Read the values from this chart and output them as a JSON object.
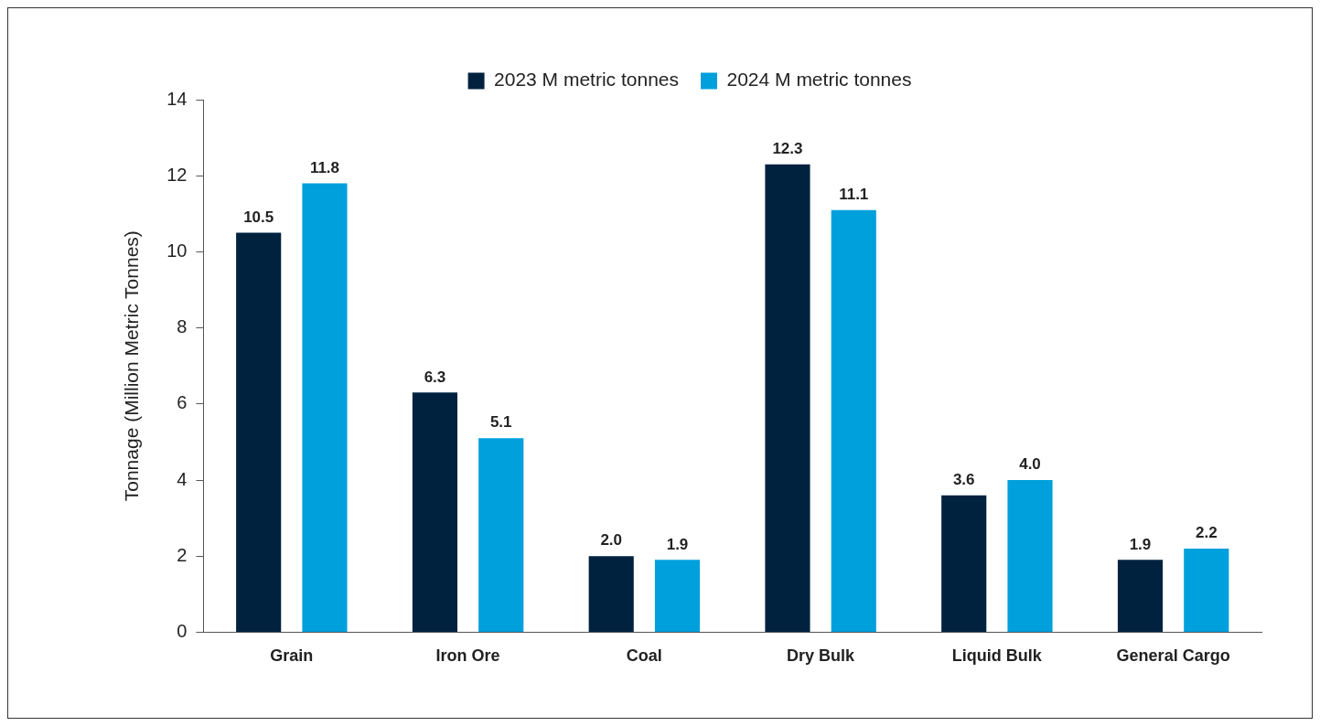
{
  "chart_data": {
    "type": "bar",
    "ylabel": "Tonnage (Million Metric Tonnes)",
    "categories": [
      "Grain",
      "Iron Ore",
      "Coal",
      "Dry Bulk",
      "Liquid Bulk",
      "General Cargo"
    ],
    "series": [
      {
        "name": "2023 M metric tonnes",
        "color": "#00223f",
        "values": [
          10.5,
          6.3,
          2.0,
          12.3,
          3.6,
          1.9
        ],
        "value_labels": [
          "10.5",
          "6.3",
          "2.0",
          "12.3",
          "3.6",
          "1.9"
        ]
      },
      {
        "name": "2024 M metric tonnes",
        "color": "#00a0dc",
        "values": [
          11.8,
          5.1,
          1.9,
          11.1,
          4.0,
          2.2
        ],
        "value_labels": [
          "11.8",
          "5.1",
          "1.9",
          "11.1",
          "4.0",
          "2.2"
        ]
      }
    ],
    "ylim": [
      0,
      14
    ],
    "yticks": [
      0,
      2,
      4,
      6,
      8,
      10,
      12,
      14
    ],
    "grid": false,
    "legend": "top"
  }
}
